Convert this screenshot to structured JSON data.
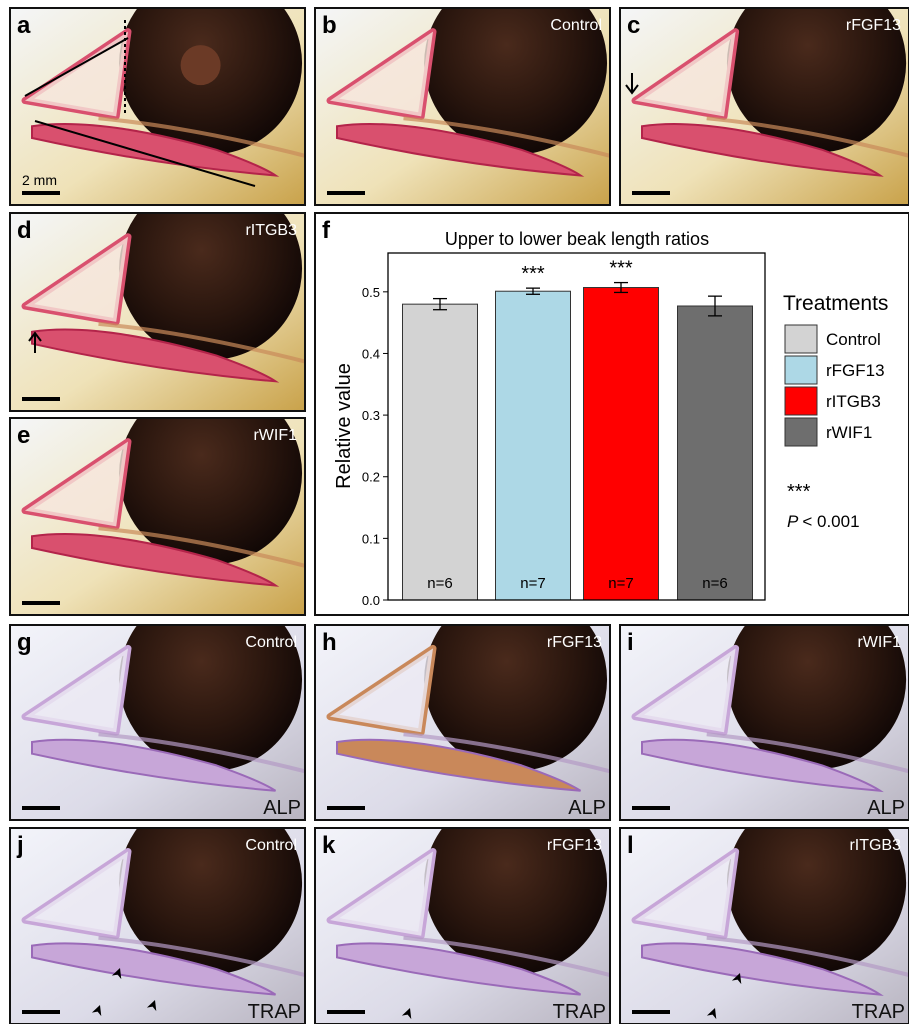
{
  "panels": [
    {
      "letter": "a",
      "scale": "2 mm"
    },
    {
      "letter": "b",
      "label": "Control"
    },
    {
      "letter": "c",
      "label": "rFGF13"
    },
    {
      "letter": "d",
      "label": "rITGB3"
    },
    {
      "letter": "e",
      "label": "rWIF1"
    },
    {
      "letter": "f"
    },
    {
      "letter": "g",
      "label": "Control",
      "stain": "ALP"
    },
    {
      "letter": "h",
      "label": "rFGF13",
      "stain": "ALP"
    },
    {
      "letter": "i",
      "label": "rWIF1",
      "stain": "ALP"
    },
    {
      "letter": "j",
      "label": "Control",
      "stain": "TRAP"
    },
    {
      "letter": "k",
      "label": "rFGF13",
      "stain": "TRAP"
    },
    {
      "letter": "l",
      "label": "rITGB3",
      "stain": "TRAP"
    }
  ],
  "chart_data": {
    "type": "bar",
    "title": "Upper to lower beak length ratios",
    "y_label": "Relative value",
    "categories": [
      "Control",
      "rFGF13",
      "rITGB3",
      "rWIF1"
    ],
    "values": [
      0.48,
      0.501,
      0.507,
      0.477
    ],
    "errors": [
      0.009,
      0.005,
      0.008,
      0.016
    ],
    "colors": [
      "#d3d3d3",
      "#add8e6",
      "#ff0000",
      "#6e6e6e"
    ],
    "sample_sizes": [
      "n=6",
      "n=7",
      "n=7",
      "n=6"
    ],
    "significance": [
      null,
      "***",
      "***",
      null
    ],
    "ylim": [
      0,
      0.563
    ],
    "yticks": [
      {
        "value": 0,
        "label": "0.0"
      },
      0.1,
      0.2,
      0.3,
      0.4,
      0.5
    ],
    "legend_title": "Treatments",
    "note_symbol": "***",
    "note_p": "P",
    "note_text": "< 0.001"
  }
}
